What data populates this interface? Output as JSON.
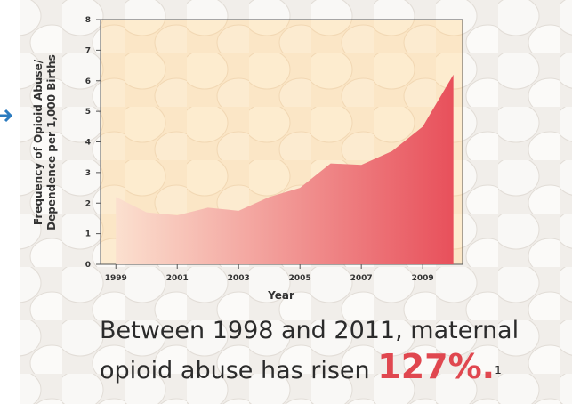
{
  "chart_data": {
    "type": "area",
    "ylabel": [
      "Frequency of Opioid Abuse/",
      "Dependence per 1,000 Births"
    ],
    "xlabel": "Year",
    "x": [
      1999,
      2000,
      2001,
      2002,
      2003,
      2004,
      2005,
      2006,
      2007,
      2008,
      2009,
      2010
    ],
    "values": [
      2.2,
      1.7,
      1.6,
      1.85,
      1.75,
      2.2,
      2.5,
      3.3,
      3.25,
      3.7,
      4.5,
      6.2
    ],
    "color": "#e8505b",
    "xlim": [
      1998.5,
      2010.3
    ],
    "xticks": [
      1999,
      2001,
      2003,
      2005,
      2007,
      2009
    ],
    "ylim": [
      0,
      8
    ],
    "yticks": [
      0,
      1,
      2,
      3,
      4,
      5,
      6,
      7,
      8
    ],
    "caption": "Between 1998 and 2011, maternal opioid abuse has risen",
    "highlight": "127%.",
    "footnote": "1"
  }
}
